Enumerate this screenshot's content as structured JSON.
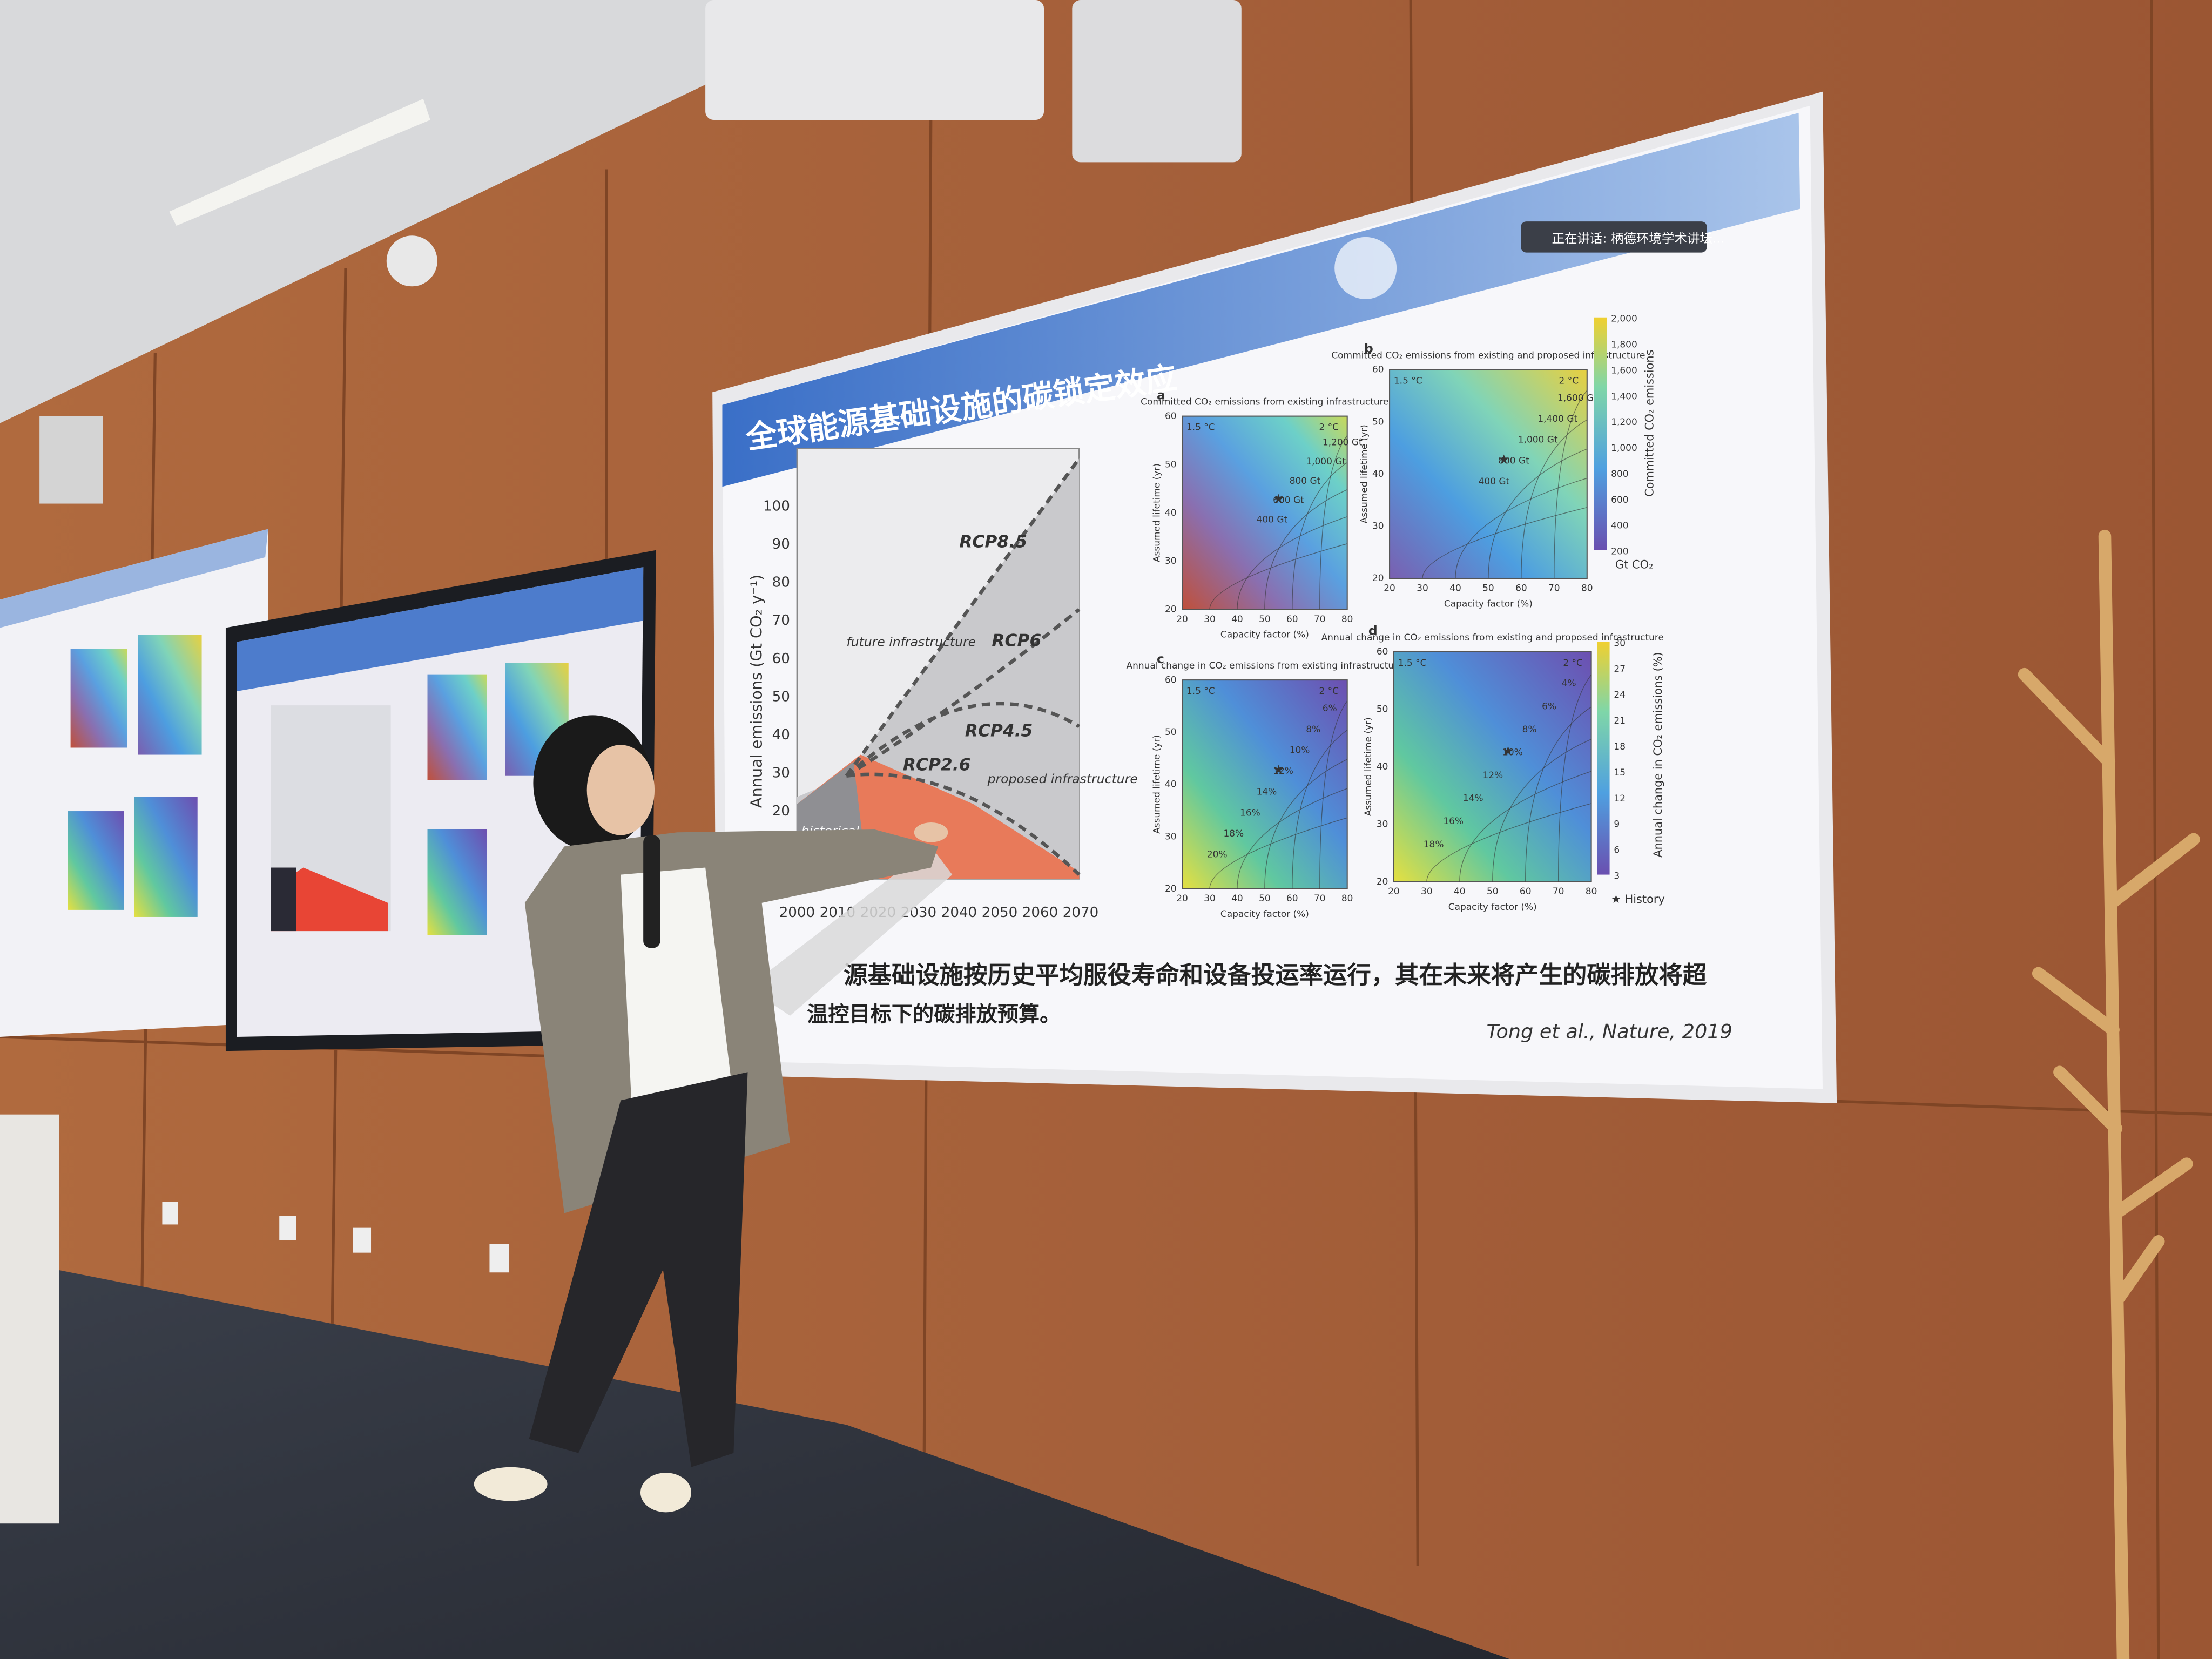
{
  "slide": {
    "title": "全球能源基础设施的碳锁定效应",
    "caption": [
      "源基础设施按历史平均服役寿命和设备投运率运行，其在未来将产生的碳排放将超",
      "温控目标下的碳排放预算。"
    ],
    "citation": "Tong et al., Nature, 2019",
    "status_banner": "正在讲话: 柄德环境学术讲坛...",
    "left_chart": {
      "y_axis_label": "Annual emissions (Gt CO₂ y⁻¹)",
      "y_ticks": [
        20,
        30,
        40,
        50,
        60,
        70,
        80,
        90,
        100
      ],
      "x_ticks": [
        2000,
        2010,
        2020,
        2030,
        2040,
        2050,
        2060,
        2070
      ],
      "scenario_labels": [
        "RCP8.5",
        "RCP6",
        "RCP4.5",
        "RCP2.6"
      ],
      "region_labels": [
        "future infrastructure",
        "proposed infrastructure",
        "historical"
      ]
    },
    "panels": [
      {
        "letter": "a",
        "title": "Committed CO₂ emissions from existing infrastructure",
        "x_label": "Capacity factor (%)",
        "y_label": "Assumed lifetime (yr)",
        "contours": [
          "1,200 Gt",
          "1,000 Gt",
          "800 Gt",
          "600 Gt",
          "400 Gt"
        ]
      },
      {
        "letter": "b",
        "title": "Committed CO₂ emissions from existing and proposed infrastructure",
        "x_label": "Capacity factor (%)",
        "y_label": "Assumed lifetime (yr)",
        "contours": [
          "1,600 Gt",
          "1,400 Gt",
          "1,000 Gt",
          "800 Gt",
          "400 Gt"
        ]
      },
      {
        "letter": "c",
        "title": "Annual change in CO₂ emissions from existing infrastructure",
        "x_label": "Capacity factor (%)",
        "y_label": "Assumed lifetime (yr)",
        "contours": [
          "6%",
          "8%",
          "10%",
          "12%",
          "14%",
          "16%",
          "18%",
          "20%"
        ]
      },
      {
        "letter": "d",
        "title": "Annual change in CO₂ emissions from existing and proposed infrastructure",
        "x_label": "Capacity factor (%)",
        "y_label": "Assumed lifetime (yr)",
        "contours": [
          "4%",
          "6%",
          "8%",
          "10%",
          "12%",
          "14%",
          "16%",
          "18%"
        ]
      }
    ],
    "panel_x_ticks": [
      20,
      30,
      40,
      50,
      60,
      70,
      80
    ],
    "panel_y_ticks": [
      20,
      30,
      40,
      50,
      60
    ],
    "temperature_labels": [
      "1.5 °C",
      "2 °C"
    ],
    "colorbar_top": {
      "label": "Committed CO₂ emissions",
      "unit": "Gt CO₂",
      "ticks": [
        200,
        400,
        600,
        800,
        1000,
        1200,
        1400,
        1600,
        1800,
        2000
      ],
      "tick_labels": [
        "200",
        "400",
        "600",
        "800",
        "1,000",
        "1,200",
        "1,400",
        "1,600",
        "1,800",
        "2,000"
      ]
    },
    "colorbar_bottom": {
      "label": "Annual change in CO₂ emissions (%)",
      "ticks": [
        3,
        6,
        9,
        12,
        15,
        18,
        21,
        24,
        27,
        30
      ]
    },
    "legend": "History"
  }
}
